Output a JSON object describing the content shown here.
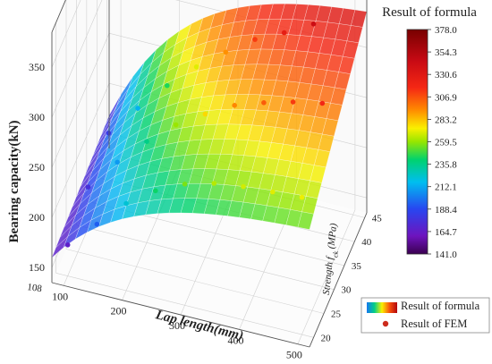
{
  "chart_data": {
    "type": "surface3d",
    "title": "Result of formula",
    "x_axis": {
      "label": "Lap length(mm)",
      "ticks": [
        "100",
        "200",
        "300",
        "400",
        "500"
      ],
      "range": [
        80,
        520
      ]
    },
    "y_axis": {
      "label": "Strength f",
      "label_sub": "ck",
      "label_unit": "(MPa)",
      "ticks": [
        "20",
        "25",
        "30",
        "35",
        "40",
        "45"
      ],
      "range": [
        18,
        46
      ]
    },
    "z_axis": {
      "label": "Bearing capacity(kN)",
      "ticks": [
        "150",
        "200",
        "250",
        "300",
        "350"
      ],
      "range": [
        135,
        385
      ]
    },
    "corner_label": "108",
    "colorbar": {
      "title": "Result of formula",
      "ticks": [
        "378.0",
        "354.3",
        "330.6",
        "306.9",
        "283.2",
        "259.5",
        "235.8",
        "212.1",
        "188.4",
        "164.7",
        "141.0"
      ],
      "min": 141.0,
      "max": 378.0
    },
    "legend": {
      "position": "bottom-right",
      "entries": [
        {
          "label": "Result of formula",
          "marker": "surface-swatch"
        },
        {
          "label": "Result of FEM",
          "marker": "red-dot"
        }
      ]
    },
    "series": [
      {
        "name": "Result of formula",
        "kind": "surface",
        "formula_note": "",
        "x": [
          80,
          520
        ],
        "y": [
          18,
          46
        ]
      },
      {
        "name": "Result of FEM",
        "kind": "points",
        "points": [
          [
            100,
            20,
            166
          ],
          [
            100,
            30,
            176
          ],
          [
            100,
            40,
            182
          ],
          [
            150,
            20,
            194
          ],
          [
            150,
            30,
            208
          ],
          [
            150,
            40,
            214
          ],
          [
            200,
            20,
            222
          ],
          [
            200,
            30,
            236
          ],
          [
            200,
            40,
            244
          ],
          [
            250,
            20,
            242
          ],
          [
            250,
            30,
            260
          ],
          [
            250,
            40,
            270
          ],
          [
            300,
            20,
            256
          ],
          [
            300,
            30,
            278
          ],
          [
            300,
            40,
            292
          ],
          [
            350,
            20,
            264
          ],
          [
            350,
            30,
            294
          ],
          [
            350,
            40,
            312
          ],
          [
            400,
            20,
            268
          ],
          [
            400,
            30,
            304
          ],
          [
            400,
            40,
            326
          ],
          [
            450,
            20,
            270
          ],
          [
            450,
            30,
            312
          ],
          [
            450,
            40,
            342
          ],
          [
            500,
            20,
            272
          ],
          [
            500,
            30,
            318
          ],
          [
            500,
            45,
            372
          ]
        ]
      }
    ]
  }
}
